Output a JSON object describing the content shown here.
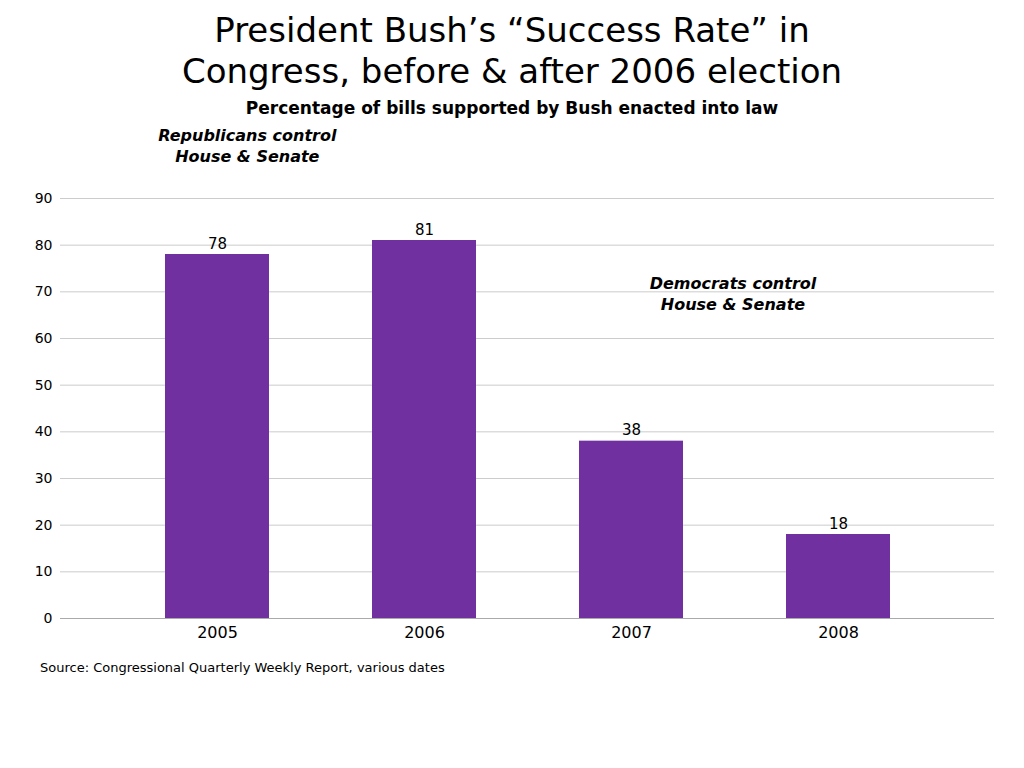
{
  "chart_data": {
    "type": "bar",
    "title": "President Bush’s “Success Rate” in\nCongress, before & after 2006 election",
    "subtitle": "Percentage of bills supported by Bush enacted into law",
    "categories": [
      "2005",
      "2006",
      "2007",
      "2008"
    ],
    "values": [
      78,
      81,
      38,
      18
    ],
    "color": "#7030A0",
    "ylim": [
      0,
      90
    ],
    "yticks": [
      0,
      10,
      20,
      30,
      40,
      50,
      60,
      70,
      80,
      90
    ],
    "grid": true,
    "data_labels": true,
    "annotations": [
      "Republicans control\nHouse & Senate",
      "Democrats control\nHouse & Senate"
    ],
    "source": "Source: Congressional Quarterly Weekly Report, various dates"
  }
}
